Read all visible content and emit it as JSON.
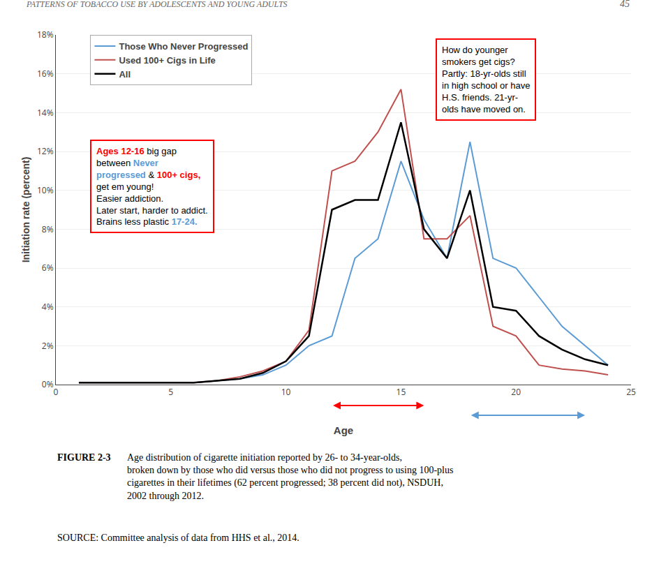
{
  "chart_data": {
    "type": "line",
    "header": "PATTERNS OF TOBACCO USE BY ADOLESCENTS AND YOUNG ADULTS",
    "page_number": "45",
    "xlabel": "Age",
    "ylabel": "Initiation rate (percent)",
    "x": [
      1,
      2,
      3,
      4,
      5,
      6,
      7,
      8,
      9,
      10,
      11,
      12,
      13,
      14,
      15,
      16,
      17,
      18,
      19,
      20,
      21,
      22,
      23,
      24
    ],
    "series": [
      {
        "name": "Those Who Never Progressed",
        "color": "#5B9BD5",
        "values": [
          0.001,
          0.001,
          0.001,
          0.001,
          0.001,
          0.001,
          0.002,
          0.003,
          0.005,
          0.01,
          0.02,
          0.025,
          0.065,
          0.075,
          0.115,
          0.085,
          0.065,
          0.125,
          0.065,
          0.06,
          0.045,
          0.03,
          0.02,
          0.01
        ]
      },
      {
        "name": "Used 100+ Cigs in Life",
        "color": "#C0504D",
        "values": [
          0.001,
          0.001,
          0.001,
          0.001,
          0.001,
          0.001,
          0.002,
          0.004,
          0.007,
          0.012,
          0.028,
          0.11,
          0.115,
          0.13,
          0.152,
          0.075,
          0.075,
          0.087,
          0.03,
          0.025,
          0.01,
          0.008,
          0.007,
          0.005
        ]
      },
      {
        "name": "All",
        "color": "#000000",
        "values": [
          0.001,
          0.001,
          0.001,
          0.001,
          0.001,
          0.001,
          0.002,
          0.003,
          0.006,
          0.012,
          0.025,
          0.09,
          0.095,
          0.095,
          0.135,
          0.08,
          0.065,
          0.1,
          0.04,
          0.038,
          0.025,
          0.018,
          0.013,
          0.01
        ]
      }
    ],
    "xlim": [
      0,
      25
    ],
    "xticks": [
      0,
      5,
      10,
      15,
      20,
      25
    ],
    "ylim": [
      0,
      0.18
    ],
    "yticks": [
      {
        "value": 0,
        "label": "0%"
      },
      {
        "value": 0.02,
        "label": "2%"
      },
      {
        "value": 0.04,
        "label": "4%"
      },
      {
        "value": 0.06,
        "label": "6%"
      },
      {
        "value": 0.08,
        "label": "8%"
      },
      {
        "value": 0.1,
        "label": "10%"
      },
      {
        "value": 0.12,
        "label": "12%"
      },
      {
        "value": 0.14,
        "label": "14%"
      },
      {
        "value": 0.16,
        "label": "16%"
      },
      {
        "value": 0.18,
        "label": "18%"
      }
    ],
    "grid": "y",
    "legend": "upper left",
    "annotations": [
      {
        "lines": [
          [
            {
              "text": "Ages 12-16",
              "color": "red"
            },
            {
              "text": " big gap"
            }
          ],
          [
            {
              "text": "between "
            },
            {
              "text": "Never",
              "color": "#5B9BD5"
            }
          ],
          [
            {
              "text": "progressed",
              "color": "#5B9BD5"
            },
            {
              "text": " & "
            },
            {
              "text": "100+ cigs,",
              "color": "red"
            }
          ],
          "get em young!",
          "Easier addiction.",
          "Later start, harder to addict.",
          [
            {
              "text": "Brains less plastic "
            },
            {
              "text": "17-24.",
              "color": "#5B9BD5"
            }
          ]
        ]
      },
      {
        "lines": [
          "How do younger",
          "smokers get cigs?",
          "Partly: 18-yr-olds still",
          "in high school or have",
          "H.S. friends. 21-yr-",
          "olds have moved on."
        ]
      }
    ],
    "arrows": [
      {
        "x": [
          12,
          16
        ],
        "color": "red"
      },
      {
        "x": [
          18,
          23
        ],
        "color": "#5B9BD5"
      }
    ],
    "caption": {
      "bold": "FIGURE 2-3",
      "text": "Age distribution of cigarette initiation reported by 26- to 34-year-olds,\nbroken down by those who did versus those who did not progress to using 100-plus\ncigarettes in their lifetimes (62 percent progressed; 38 percent did not), NSDUH,\n2002 through 2012.",
      "source": "SOURCE: Committee analysis of data from HHS et al., 2014."
    }
  }
}
